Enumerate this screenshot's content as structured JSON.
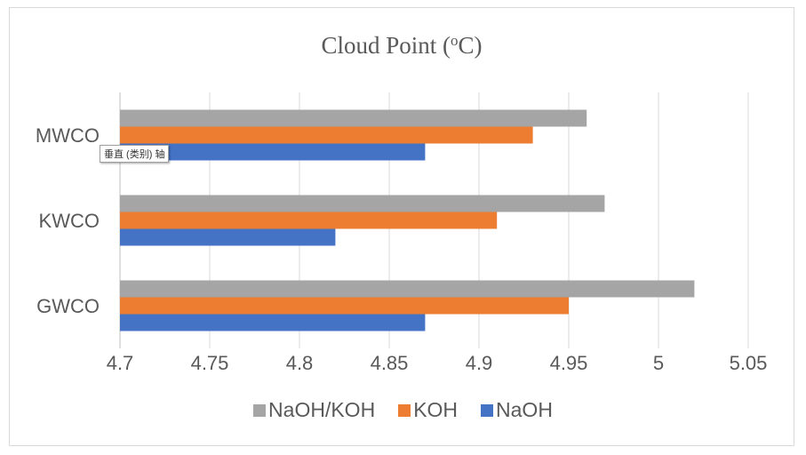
{
  "chart_data": {
    "type": "bar",
    "orientation": "horizontal",
    "title": "Cloud Point (°C)",
    "title_parts": {
      "main": "Cloud Point (",
      "superscript": "o",
      "unit_end": "C)"
    },
    "categories": [
      "GWCO",
      "KWCO",
      "MWCO"
    ],
    "series": [
      {
        "name": "NaOH/KOH",
        "color": "#a5a5a5",
        "values": [
          5.02,
          4.97,
          4.96
        ]
      },
      {
        "name": "KOH",
        "color": "#ed7d31",
        "values": [
          4.95,
          4.91,
          4.93
        ]
      },
      {
        "name": "NaOH",
        "color": "#4472c4",
        "values": [
          4.87,
          4.82,
          4.87
        ]
      }
    ],
    "xlim": [
      4.7,
      5.05
    ],
    "x_ticks": [
      "4.7",
      "4.75",
      "4.8",
      "4.85",
      "4.9",
      "4.95",
      "5",
      "5.05"
    ],
    "grid": "vertical",
    "legend_position": "bottom"
  },
  "tooltip": {
    "text": "垂直 (类别) 轴"
  }
}
